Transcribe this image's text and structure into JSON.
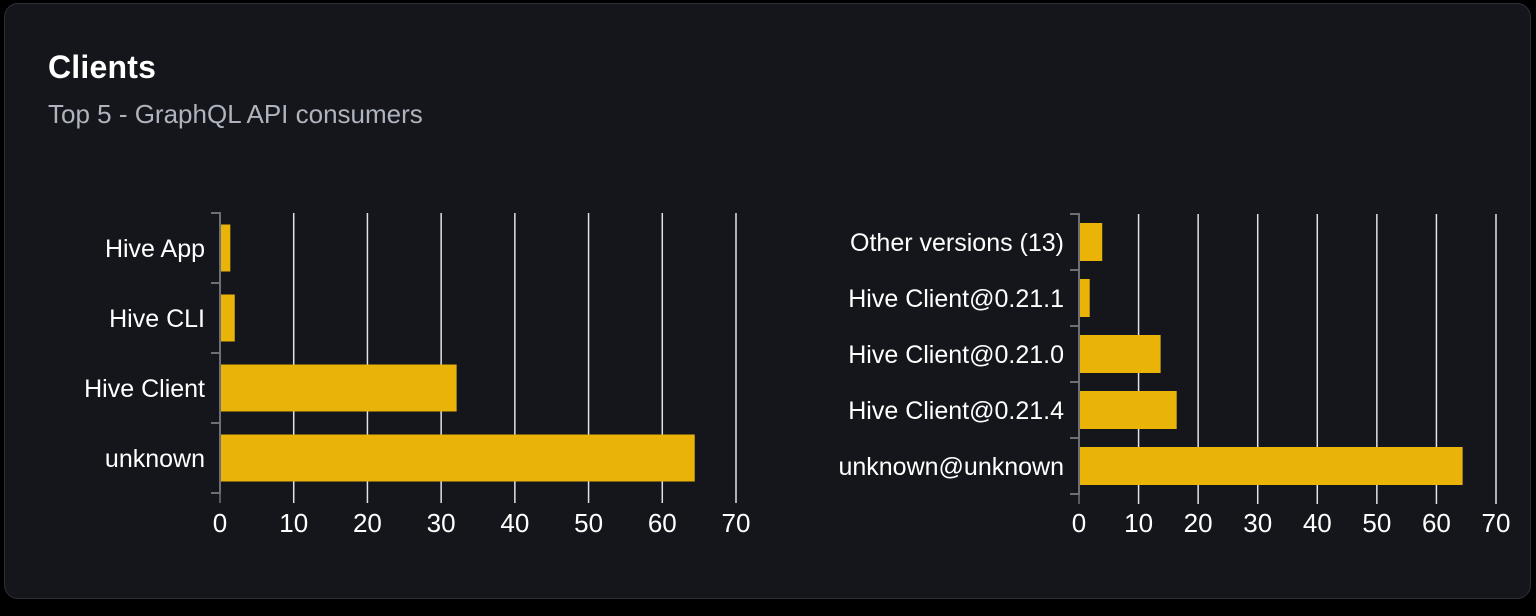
{
  "card": {
    "title": "Clients",
    "subtitle": "Top 5 - GraphQL API consumers"
  },
  "colors": {
    "page_bg": "#000000",
    "card_bg": "#14161b",
    "card_border": "#2c2f36",
    "bar": "#e9b308",
    "grid_line": "#dfe3ec",
    "axis_line": "#6b7078",
    "label_text": "#ffffff",
    "subtitle_text": "#aeb3bd"
  },
  "chart_data": [
    {
      "type": "bar",
      "orientation": "horizontal",
      "name": "clients-top-5",
      "title": "",
      "categories": [
        "Hive App",
        "Hive CLI",
        "Hive Client",
        "unknown"
      ],
      "values": [
        1.4,
        2.0,
        32.1,
        64.4
      ],
      "xlabel": "",
      "ylabel": "",
      "xlim": [
        0,
        70
      ],
      "xticks": [
        0,
        10,
        20,
        30,
        40,
        50,
        60,
        70
      ],
      "grid": true,
      "legend": false
    },
    {
      "type": "bar",
      "orientation": "horizontal",
      "name": "client-versions-top-5",
      "title": "",
      "categories": [
        "Other versions (13)",
        "Hive Client@0.21.1",
        "Hive Client@0.21.0",
        "Hive Client@0.21.4",
        "unknown@unknown"
      ],
      "values": [
        3.9,
        1.8,
        13.7,
        16.4,
        64.4
      ],
      "xlabel": "",
      "ylabel": "",
      "xlim": [
        0,
        70
      ],
      "xticks": [
        0,
        10,
        20,
        30,
        40,
        50,
        60,
        70
      ],
      "grid": true,
      "legend": false
    }
  ]
}
